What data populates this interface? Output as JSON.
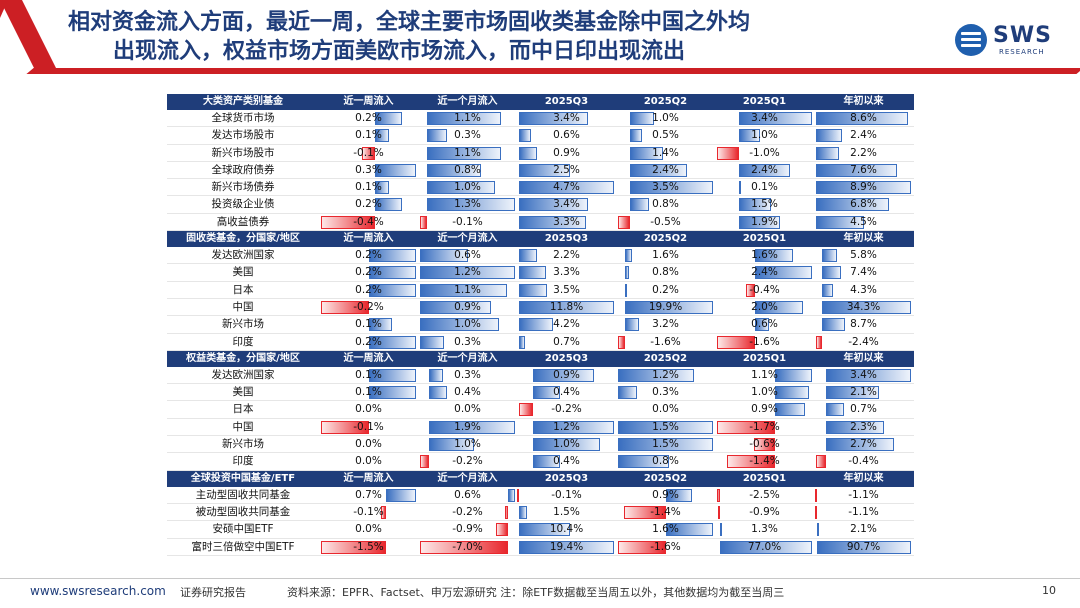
{
  "title": {
    "line1": "相对资金流入方面，最近一周，全球主要市场固收类基金除中国之外均",
    "line2": "出现流入，权益市场方面美欧市场流入，而中日印出现流出"
  },
  "logo": {
    "brand": "SWS",
    "sub": "RESEARCH"
  },
  "colors": {
    "header": "#1f3d7a",
    "accent": "#cc1f24",
    "pos_bar": "#3a6fc0",
    "neg_bar": "#e8282e"
  },
  "table": {
    "columns": [
      "近一周流入",
      "近一个月流入",
      "2025Q3",
      "2025Q2",
      "2025Q1",
      "年初以来"
    ],
    "groups": [
      {
        "header": "大类资产类别基金",
        "rows": [
          {
            "name": "全球货币市场",
            "values": [
              0.2,
              1.1,
              3.4,
              1.0,
              3.4,
              8.6
            ]
          },
          {
            "name": "发达市场股市",
            "values": [
              0.1,
              0.3,
              0.6,
              0.5,
              1.0,
              2.4
            ]
          },
          {
            "name": "新兴市场股市",
            "values": [
              -0.1,
              1.1,
              0.9,
              1.4,
              -1.0,
              2.2
            ]
          },
          {
            "name": "全球政府债券",
            "values": [
              0.3,
              0.8,
              2.5,
              2.4,
              2.4,
              7.6
            ]
          },
          {
            "name": "新兴市场债券",
            "values": [
              0.1,
              1.0,
              4.7,
              3.5,
              0.1,
              8.9
            ]
          },
          {
            "name": "投资级企业债",
            "values": [
              0.2,
              1.3,
              3.4,
              0.8,
              1.5,
              6.8
            ]
          },
          {
            "name": "高收益债券",
            "values": [
              -0.4,
              -0.1,
              3.3,
              -0.5,
              1.9,
              4.5
            ]
          }
        ]
      },
      {
        "header": "固收类基金，分国家/地区",
        "rows": [
          {
            "name": "发达欧洲国家",
            "values": [
              0.2,
              0.6,
              2.2,
              1.6,
              1.6,
              5.8
            ]
          },
          {
            "name": "美国",
            "values": [
              0.2,
              1.2,
              3.3,
              0.8,
              2.4,
              7.4
            ]
          },
          {
            "name": "日本",
            "values": [
              0.2,
              1.1,
              3.5,
              0.2,
              -0.4,
              4.3
            ]
          },
          {
            "name": "中国",
            "values": [
              -0.2,
              0.9,
              11.8,
              19.9,
              2.0,
              34.3
            ]
          },
          {
            "name": "新兴市场",
            "values": [
              0.1,
              1.0,
              4.2,
              3.2,
              0.6,
              8.7
            ]
          },
          {
            "name": "印度",
            "values": [
              0.2,
              0.3,
              0.7,
              -1.6,
              -1.6,
              -2.4
            ]
          }
        ]
      },
      {
        "header": "权益类基金，分国家/地区",
        "rows": [
          {
            "name": "发达欧洲国家",
            "values": [
              0.1,
              0.3,
              0.9,
              1.2,
              1.1,
              3.4
            ]
          },
          {
            "name": "美国",
            "values": [
              0.1,
              0.4,
              0.4,
              0.3,
              1.0,
              2.1
            ]
          },
          {
            "name": "日本",
            "values": [
              0.0,
              0.0,
              -0.2,
              0.0,
              0.9,
              0.7
            ]
          },
          {
            "name": "中国",
            "values": [
              -0.1,
              1.9,
              1.2,
              1.5,
              -1.7,
              2.3
            ]
          },
          {
            "name": "新兴市场",
            "values": [
              0.0,
              1.0,
              1.0,
              1.5,
              -0.6,
              2.7
            ]
          },
          {
            "name": "印度",
            "values": [
              0.0,
              -0.2,
              0.4,
              0.8,
              -1.4,
              -0.4
            ]
          }
        ]
      },
      {
        "header": "全球投资中国基金/ETF",
        "rows": [
          {
            "name": "主动型固收共同基金",
            "values": [
              0.7,
              0.6,
              -0.1,
              0.9,
              -2.5,
              -1.1
            ]
          },
          {
            "name": "被动型固收共同基金",
            "values": [
              -0.1,
              -0.2,
              1.5,
              -1.4,
              -0.9,
              -1.1
            ]
          },
          {
            "name": "安硕中国ETF",
            "values": [
              0.0,
              -0.9,
              10.4,
              1.6,
              1.3,
              2.1
            ]
          },
          {
            "name": "富时三倍做空中国ETF",
            "values": [
              -1.5,
              -7.0,
              19.4,
              -1.6,
              77.0,
              90.7
            ]
          }
        ]
      }
    ]
  },
  "footer": {
    "url": "www.swsresearch.com",
    "report": "证券研究报告",
    "source": "资料来源：EPFR、Factset、申万宏源研究 注：除ETF数据截至当周五以外，其他数据均为截至当周三",
    "page": "10"
  }
}
